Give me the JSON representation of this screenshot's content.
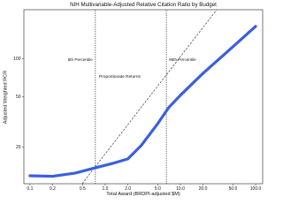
{
  "chart_data": {
    "type": "line",
    "title": "NIH Multivariable-Adjusted Relative Citation Ratio by Budget",
    "x_label": "Total Award (BRDPI-adjusted $M)",
    "y_label": "Adjusted Weighted RCR",
    "x_scale": "log",
    "y_scale": "log",
    "xlim": [
      0.083,
      124
    ],
    "ylim": [
      10.3,
      245
    ],
    "xticks": [
      0.1,
      0.2,
      0.5,
      {
        "value": 1,
        "label": "1.0"
      },
      {
        "value": 2,
        "label": "2.0"
      },
      {
        "value": 5,
        "label": "5.0"
      },
      {
        "value": 10,
        "label": "10.0"
      },
      {
        "value": 20,
        "label": "20.0"
      },
      {
        "value": 50,
        "label": "50.0"
      },
      {
        "value": 100,
        "label": "100.0"
      }
    ],
    "yticks": [
      20,
      50,
      100
    ],
    "series": [
      {
        "color": "#3a5fe0",
        "x": [
          0.1,
          0.2,
          0.4,
          0.75,
          1.3,
          2,
          3,
          5,
          7,
          10,
          20,
          50,
          100
        ],
        "values": [
          11.9,
          11.8,
          12.5,
          13.8,
          15,
          16.2,
          20.6,
          30.8,
          41.3,
          51.6,
          77,
          125,
          181
        ]
      }
    ],
    "vlines": [
      {
        "value": 0.74,
        "label": "5th Percentile"
      },
      {
        "value": 6.5,
        "label": "95th Percentile"
      }
    ],
    "reference_line": {
      "label": "Proportionate Returns",
      "x": [
        0.494,
        30.4
      ],
      "y": [
        10.3,
        245
      ]
    }
  }
}
